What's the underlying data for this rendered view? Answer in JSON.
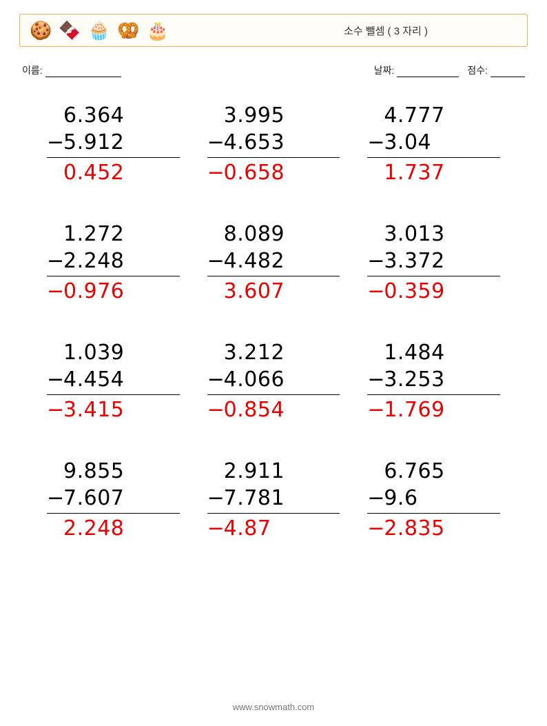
{
  "header": {
    "icons": [
      "🍪",
      "🍫",
      "🧁",
      "🥨",
      "🎂"
    ],
    "title": "소수 뺄셈 ( 3 자리 )"
  },
  "info": {
    "name_label": "이름:",
    "date_label": "날짜:",
    "score_label": "점수:"
  },
  "problems": [
    {
      "a": "6.364",
      "b": "5.912",
      "ans_sign": "",
      "ans": "0.452"
    },
    {
      "a": "3.995",
      "b": "4.653",
      "ans_sign": "−",
      "ans": "0.658"
    },
    {
      "a": "4.777",
      "b": "3.04",
      "ans_sign": "",
      "ans": "1.737"
    },
    {
      "a": "1.272",
      "b": "2.248",
      "ans_sign": "−",
      "ans": "0.976"
    },
    {
      "a": "8.089",
      "b": "4.482",
      "ans_sign": "",
      "ans": "3.607"
    },
    {
      "a": "3.013",
      "b": "3.372",
      "ans_sign": "−",
      "ans": "0.359"
    },
    {
      "a": "1.039",
      "b": "4.454",
      "ans_sign": "−",
      "ans": "3.415"
    },
    {
      "a": "3.212",
      "b": "4.066",
      "ans_sign": "−",
      "ans": "0.854"
    },
    {
      "a": "1.484",
      "b": "3.253",
      "ans_sign": "−",
      "ans": "1.769"
    },
    {
      "a": "9.855",
      "b": "7.607",
      "ans_sign": "",
      "ans": "2.248"
    },
    {
      "a": "2.911",
      "b": "7.781",
      "ans_sign": "−",
      "ans": "4.87"
    },
    {
      "a": "6.765",
      "b": "9.6",
      "ans_sign": "−",
      "ans": "2.835"
    }
  ],
  "footer": {
    "url": "www.snowmath.com"
  },
  "colors": {
    "answer": "#e60000",
    "header_border": "#e4b45a",
    "header_bg": "#fffdf8",
    "text": "#000000",
    "footer": "#777777"
  }
}
